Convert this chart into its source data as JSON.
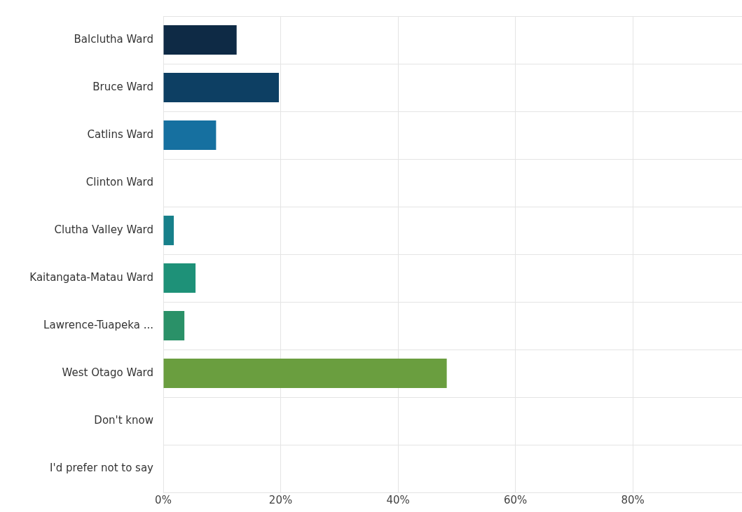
{
  "chart_data": {
    "type": "bar",
    "orientation": "horizontal",
    "categories": [
      "Balclutha Ward",
      "Bruce Ward",
      "Catlins Ward",
      "Clinton Ward",
      "Clutha Valley Ward",
      "Kaitangata-Matau Ward",
      "Lawrence-Tuapeka ...",
      "West Otago Ward",
      "Don't know",
      "I'd prefer not to say"
    ],
    "values": [
      12.5,
      19.7,
      9.0,
      0,
      1.8,
      5.5,
      3.6,
      48.3,
      0,
      0
    ],
    "colors": [
      "#0e2a45",
      "#0d3f63",
      "#1670a0",
      "#1a7a8c",
      "#17808a",
      "#1e9178",
      "#2a9168",
      "#6a9e3f",
      "#6a9e3f",
      "#6a9e3f"
    ],
    "xlim": [
      0,
      98.6
    ],
    "xticks": [
      {
        "value": 0,
        "label": "0%"
      },
      {
        "value": 20,
        "label": "20%"
      },
      {
        "value": 40,
        "label": "40%"
      },
      {
        "value": 60,
        "label": "60%"
      },
      {
        "value": 80,
        "label": "80%"
      }
    ],
    "grid": true,
    "legend": false
  }
}
